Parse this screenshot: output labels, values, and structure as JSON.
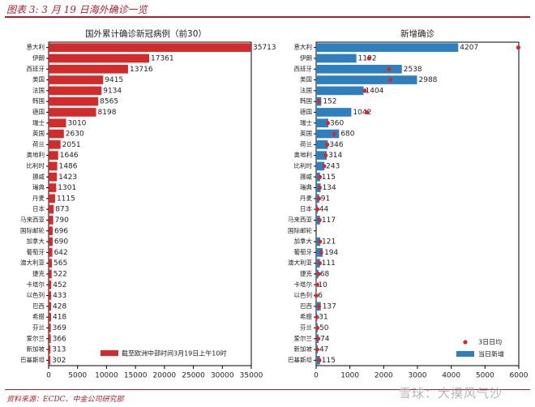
{
  "header": {
    "title": "图表 3: 3 月 19 日海外确诊一览"
  },
  "footer": {
    "source": "资料来源：ECDC、中金公司研究部",
    "watermark": "雪球：大摸风气沙"
  },
  "colors": {
    "left_bar": "#d42a2a",
    "right_bar": "#2e7fbf",
    "dot": "#d42a2a",
    "brand": "#b01e2e"
  },
  "chart_data": [
    {
      "type": "bar",
      "orientation": "horizontal",
      "title": "国外累计确诊新冠病例（前30）",
      "categories": [
        "意大利",
        "伊朗",
        "西班牙",
        "美国",
        "法国",
        "韩国",
        "德国",
        "瑞士",
        "英国",
        "荷兰",
        "奥地利",
        "比利时",
        "挪威",
        "瑞典",
        "丹麦",
        "日本",
        "马来西亚",
        "国际邮轮",
        "加拿大",
        "葡萄牙",
        "澳大利亚",
        "捷克",
        "卡塔尔",
        "以色列",
        "巴西",
        "希腊",
        "芬兰",
        "爱尔兰",
        "新加坡",
        "巴基斯坦"
      ],
      "series": [
        {
          "name": "截至欧洲中部时间3月19日上午10时",
          "values": [
            35713,
            17361,
            13716,
            9415,
            9134,
            8565,
            8198,
            3010,
            2630,
            2051,
            1646,
            1486,
            1423,
            1301,
            1115,
            873,
            790,
            696,
            690,
            642,
            565,
            522,
            452,
            433,
            428,
            418,
            369,
            366,
            313,
            302
          ]
        }
      ],
      "xlim": [
        0,
        35000
      ],
      "xticks": [
        0,
        5000,
        10000,
        15000,
        20000,
        25000,
        30000,
        35000
      ],
      "legend_position": "bottom-right"
    },
    {
      "type": "bar",
      "orientation": "horizontal",
      "title": "新增确诊",
      "categories": [
        "意大利",
        "伊朗",
        "西班牙",
        "美国",
        "法国",
        "韩国",
        "德国",
        "瑞士",
        "英国",
        "荷兰",
        "奥地利",
        "比利时",
        "挪威",
        "瑞典",
        "丹麦",
        "日本",
        "马来西亚",
        "国际邮轮",
        "加拿大",
        "葡萄牙",
        "澳大利亚",
        "捷克",
        "卡塔尔",
        "以色列",
        "巴西",
        "希腊",
        "芬兰",
        "爱尔兰",
        "新加坡",
        "巴基斯坦"
      ],
      "series": [
        {
          "name": "当日新增",
          "values": [
            4207,
            1192,
            2538,
            2988,
            1404,
            152,
            1042,
            360,
            680,
            346,
            314,
            243,
            115,
            134,
            91,
            44,
            117,
            0,
            121,
            194,
            111,
            68,
            10,
            6,
            137,
            31,
            50,
            74,
            47,
            115
          ]
        },
        {
          "name": "3日日均",
          "values": [
            5986,
            1565,
            2164,
            2202,
            1442,
            88,
            1506,
            346,
            536,
            330,
            280,
            236,
            109,
            107,
            82,
            35,
            100,
            0,
            113,
            150,
            104,
            72,
            35,
            7,
            82,
            25,
            37,
            60,
            31,
            95
          ]
        }
      ],
      "xlim": [
        0,
        6000
      ],
      "xticks": [
        0,
        1000,
        2000,
        3000,
        4000,
        5000,
        6000
      ],
      "legend_position": "bottom-right"
    }
  ]
}
